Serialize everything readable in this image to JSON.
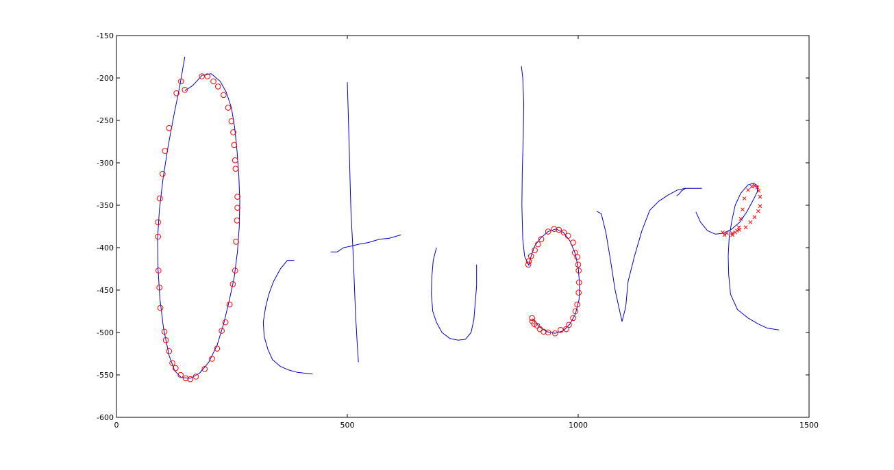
{
  "chart_data": {
    "type": "line",
    "title": "",
    "xlabel": "",
    "ylabel": "",
    "xlim": [
      0,
      1500
    ],
    "ylim": [
      -600,
      -150
    ],
    "xticks": [
      "0",
      "500",
      "1000",
      "1500"
    ],
    "yticks": [
      "-150",
      "-200",
      "-250",
      "-300",
      "-350",
      "-400",
      "-450",
      "-500",
      "-550",
      "-600"
    ],
    "xtick_values": [
      0,
      500,
      1000,
      1500
    ],
    "ytick_values": [
      -150,
      -200,
      -250,
      -300,
      -350,
      -400,
      -450,
      -500,
      -550,
      -600
    ],
    "grid": false,
    "legend": "none",
    "colors": {
      "stroke": "#0000cc",
      "markers": "#ff0000",
      "axes": "#000000"
    },
    "strokes": [
      {
        "points": [
          [
            148,
            -175
          ],
          [
            137,
            -210
          ],
          [
            124,
            -245
          ],
          [
            112,
            -280
          ],
          [
            101,
            -318
          ],
          [
            93,
            -355
          ],
          [
            89,
            -390
          ],
          [
            90,
            -425
          ],
          [
            94,
            -460
          ],
          [
            102,
            -495
          ],
          [
            114,
            -527
          ],
          [
            126,
            -545
          ],
          [
            140,
            -553
          ],
          [
            160,
            -554
          ],
          [
            180,
            -548
          ],
          [
            200,
            -535
          ],
          [
            218,
            -515
          ],
          [
            232,
            -490
          ],
          [
            244,
            -463
          ],
          [
            255,
            -435
          ],
          [
            262,
            -405
          ],
          [
            266,
            -375
          ],
          [
            267,
            -345
          ],
          [
            265,
            -315
          ],
          [
            261,
            -285
          ],
          [
            256,
            -258
          ],
          [
            249,
            -235
          ],
          [
            238,
            -217
          ],
          [
            225,
            -204
          ],
          [
            205,
            -195
          ],
          [
            185,
            -197
          ],
          [
            165,
            -209
          ],
          [
            148,
            -215
          ]
        ]
      },
      {
        "points": [
          [
            385,
            -415
          ],
          [
            370,
            -415
          ],
          [
            355,
            -425
          ],
          [
            340,
            -440
          ],
          [
            330,
            -455
          ],
          [
            323,
            -470
          ],
          [
            318,
            -488
          ],
          [
            320,
            -505
          ],
          [
            328,
            -520
          ],
          [
            338,
            -532
          ],
          [
            355,
            -540
          ],
          [
            372,
            -544
          ],
          [
            392,
            -547
          ],
          [
            425,
            -549
          ]
        ]
      },
      {
        "points": [
          [
            500,
            -205
          ],
          [
            502,
            -240
          ],
          [
            504,
            -280
          ],
          [
            506,
            -320
          ],
          [
            508,
            -360
          ],
          [
            512,
            -400
          ],
          [
            515,
            -440
          ],
          [
            518,
            -480
          ],
          [
            521,
            -510
          ],
          [
            524,
            -535
          ]
        ]
      },
      {
        "points": [
          [
            464,
            -405
          ],
          [
            478,
            -405
          ],
          [
            492,
            -400
          ],
          [
            510,
            -398
          ],
          [
            525,
            -396
          ],
          [
            545,
            -394
          ],
          [
            570,
            -390
          ],
          [
            590,
            -389
          ],
          [
            616,
            -385
          ]
        ]
      },
      {
        "points": [
          [
            693,
            -400
          ],
          [
            686,
            -415
          ],
          [
            683,
            -435
          ],
          [
            682,
            -455
          ],
          [
            685,
            -475
          ],
          [
            693,
            -488
          ],
          [
            705,
            -500
          ],
          [
            722,
            -507
          ],
          [
            740,
            -509
          ],
          [
            756,
            -508
          ],
          [
            768,
            -500
          ],
          [
            774,
            -485
          ],
          [
            777,
            -465
          ],
          [
            780,
            -445
          ],
          [
            780,
            -420
          ]
        ]
      },
      {
        "points": [
          [
            877,
            -186
          ],
          [
            880,
            -200
          ],
          [
            882,
            -230
          ],
          [
            881,
            -270
          ],
          [
            879,
            -310
          ],
          [
            878,
            -350
          ],
          [
            880,
            -390
          ],
          [
            884,
            -410
          ],
          [
            893,
            -421
          ]
        ]
      },
      {
        "points": [
          [
            893,
            -421
          ],
          [
            898,
            -410
          ],
          [
            906,
            -398
          ],
          [
            918,
            -389
          ],
          [
            935,
            -381
          ],
          [
            952,
            -378
          ],
          [
            968,
            -382
          ],
          [
            982,
            -392
          ],
          [
            993,
            -406
          ],
          [
            1000,
            -423
          ],
          [
            1003,
            -443
          ],
          [
            1002,
            -461
          ],
          [
            994,
            -478
          ],
          [
            982,
            -490
          ],
          [
            968,
            -498
          ],
          [
            950,
            -501
          ],
          [
            932,
            -499
          ],
          [
            915,
            -493
          ],
          [
            906,
            -486
          ],
          [
            900,
            -484
          ]
        ]
      },
      {
        "points": [
          [
            1040,
            -357
          ],
          [
            1050,
            -360
          ],
          [
            1060,
            -382
          ],
          [
            1070,
            -415
          ],
          [
            1080,
            -450
          ],
          [
            1090,
            -475
          ],
          [
            1095,
            -487
          ],
          [
            1103,
            -470
          ],
          [
            1108,
            -440
          ],
          [
            1122,
            -410
          ],
          [
            1138,
            -380
          ],
          [
            1155,
            -356
          ],
          [
            1175,
            -345
          ],
          [
            1195,
            -338
          ],
          [
            1215,
            -332
          ],
          [
            1232,
            -330
          ],
          [
            1268,
            -330
          ]
        ]
      },
      {
        "points": [
          [
            1213,
            -339
          ],
          [
            1218,
            -337
          ],
          [
            1224,
            -333
          ],
          [
            1233,
            -330
          ]
        ]
      },
      {
        "points": [
          [
            1255,
            -358
          ],
          [
            1265,
            -370
          ],
          [
            1280,
            -380
          ],
          [
            1297,
            -384
          ],
          [
            1315,
            -383
          ],
          [
            1333,
            -378
          ],
          [
            1350,
            -370
          ],
          [
            1365,
            -358
          ],
          [
            1380,
            -343
          ],
          [
            1388,
            -334
          ],
          [
            1388,
            -327
          ],
          [
            1380,
            -324
          ],
          [
            1368,
            -326
          ],
          [
            1352,
            -336
          ],
          [
            1340,
            -350
          ],
          [
            1333,
            -368
          ],
          [
            1327,
            -388
          ],
          [
            1325,
            -410
          ],
          [
            1326,
            -432
          ],
          [
            1330,
            -455
          ],
          [
            1345,
            -473
          ],
          [
            1368,
            -483
          ],
          [
            1390,
            -490
          ],
          [
            1410,
            -495
          ],
          [
            1435,
            -497
          ]
        ]
      }
    ],
    "markers": [
      {
        "symbol": "o",
        "points": [
          [
            148,
            -214
          ],
          [
            130,
            -218
          ],
          [
            140,
            -204
          ],
          [
            185,
            -198
          ],
          [
            197,
            -198
          ],
          [
            210,
            -204
          ],
          [
            220,
            -210
          ],
          [
            232,
            -220
          ],
          [
            242,
            -235
          ],
          [
            249,
            -251
          ],
          [
            253,
            -264
          ],
          [
            255,
            -279
          ],
          [
            257,
            -297
          ],
          [
            258,
            -307
          ],
          [
            262,
            -340
          ],
          [
            262,
            -353
          ],
          [
            261,
            -368
          ],
          [
            259,
            -393
          ],
          [
            257,
            -427
          ],
          [
            252,
            -443
          ],
          [
            245,
            -467
          ],
          [
            236,
            -488
          ],
          [
            228,
            -498
          ],
          [
            218,
            -519
          ],
          [
            207,
            -531
          ],
          [
            191,
            -543
          ],
          [
            172,
            -552
          ],
          [
            160,
            -555
          ],
          [
            150,
            -554
          ],
          [
            139,
            -550
          ],
          [
            128,
            -542
          ],
          [
            121,
            -536
          ],
          [
            114,
            -522
          ],
          [
            107,
            -509
          ],
          [
            104,
            -499
          ],
          [
            95,
            -471
          ],
          [
            93,
            -447
          ],
          [
            91,
            -427
          ],
          [
            90,
            -387
          ],
          [
            90,
            -370
          ],
          [
            94,
            -342
          ],
          [
            100,
            -313
          ],
          [
            105,
            -286
          ],
          [
            114,
            -259
          ]
        ]
      },
      {
        "symbol": "o",
        "points": [
          [
            892,
            -420
          ],
          [
            893,
            -416
          ],
          [
            898,
            -410
          ],
          [
            906,
            -403
          ],
          [
            913,
            -396
          ],
          [
            920,
            -390
          ],
          [
            935,
            -381
          ],
          [
            948,
            -378
          ],
          [
            958,
            -379
          ],
          [
            969,
            -382
          ],
          [
            978,
            -386
          ],
          [
            989,
            -394
          ],
          [
            993,
            -406
          ],
          [
            998,
            -411
          ],
          [
            1000,
            -420
          ],
          [
            1001,
            -427
          ],
          [
            1002,
            -441
          ],
          [
            1001,
            -453
          ],
          [
            998,
            -467
          ],
          [
            994,
            -475
          ],
          [
            989,
            -483
          ],
          [
            980,
            -491
          ],
          [
            974,
            -496
          ],
          [
            962,
            -497
          ],
          [
            950,
            -501
          ],
          [
            935,
            -500
          ],
          [
            925,
            -499
          ],
          [
            917,
            -496
          ],
          [
            911,
            -492
          ],
          [
            905,
            -490
          ],
          [
            901,
            -487
          ],
          [
            900,
            -483
          ]
        ]
      },
      {
        "symbol": "x",
        "points": [
          [
            1317,
            -385
          ],
          [
            1313,
            -382
          ],
          [
            1322,
            -383
          ],
          [
            1334,
            -383
          ],
          [
            1349,
            -379
          ],
          [
            1363,
            -376
          ],
          [
            1373,
            -370
          ],
          [
            1382,
            -364
          ],
          [
            1390,
            -357
          ],
          [
            1394,
            -351
          ],
          [
            1394,
            -340
          ],
          [
            1391,
            -333
          ],
          [
            1388,
            -329
          ],
          [
            1382,
            -327
          ],
          [
            1376,
            -328
          ],
          [
            1368,
            -332
          ],
          [
            1360,
            -342
          ],
          [
            1356,
            -355
          ],
          [
            1352,
            -366
          ],
          [
            1348,
            -376
          ],
          [
            1344,
            -380
          ],
          [
            1340,
            -382
          ],
          [
            1334,
            -385
          ]
        ]
      }
    ]
  }
}
